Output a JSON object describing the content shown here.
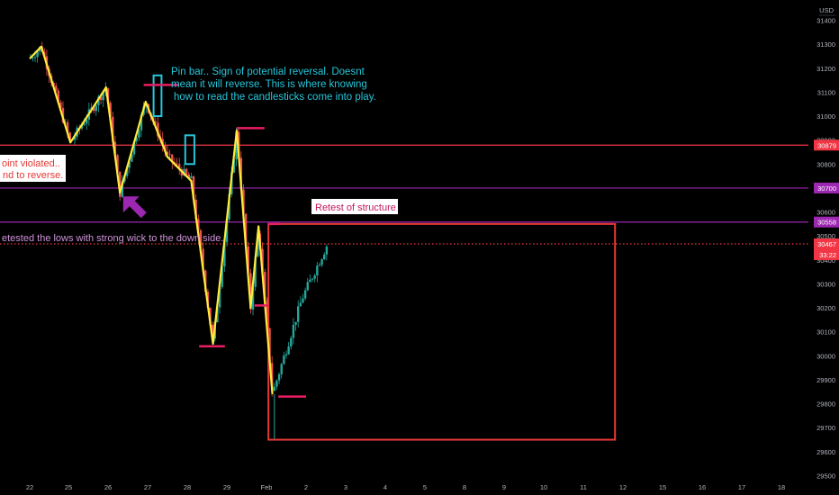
{
  "chart_data": {
    "type": "candlestick",
    "currency": "USD",
    "ylim": [
      29500,
      31500
    ],
    "y_ticks": [
      "31400",
      "31300",
      "31200",
      "31100",
      "31000",
      "30900",
      "30800",
      "30700",
      "30600",
      "30500",
      "30400",
      "30300",
      "30200",
      "30100",
      "30000",
      "29900",
      "29800",
      "29700",
      "29600",
      "29500"
    ],
    "x_ticks": [
      "22",
      "25",
      "26",
      "27",
      "28",
      "29",
      "Feb",
      "2",
      "3",
      "4",
      "5",
      "8",
      "9",
      "10",
      "11",
      "12",
      "15",
      "16",
      "17",
      "18"
    ],
    "price_lines": [
      {
        "value": 30879,
        "label": "30879",
        "color": "#f23645"
      },
      {
        "value": 30700,
        "label": "30700",
        "color": "#9c27b0"
      },
      {
        "value": 30558,
        "label": "30558",
        "color": "#9c27b0"
      },
      {
        "value": 30467,
        "label": "30467",
        "color": "#f23645",
        "dashed": true,
        "countdown": "33:22"
      }
    ],
    "zigzag": [
      {
        "day": 0.0,
        "price": 31240
      },
      {
        "day": 0.3,
        "price": 31290
      },
      {
        "day": 1.05,
        "price": 30890
      },
      {
        "day": 1.95,
        "price": 31120
      },
      {
        "day": 2.3,
        "price": 30680
      },
      {
        "day": 2.95,
        "price": 31060
      },
      {
        "day": 3.5,
        "price": 30830
      },
      {
        "day": 4.1,
        "price": 30730
      },
      {
        "day": 4.65,
        "price": 30050
      },
      {
        "day": 5.25,
        "price": 30940
      },
      {
        "day": 5.6,
        "price": 30200
      },
      {
        "day": 5.8,
        "price": 30540
      },
      {
        "day": 6.15,
        "price": 29840
      }
    ],
    "pin_marks": [
      {
        "day0": 2.9,
        "day1": 3.8,
        "price": 31130
      },
      {
        "day0": 4.3,
        "day1": 4.95,
        "price": 30040
      },
      {
        "day0": 5.25,
        "day1": 5.95,
        "price": 30950
      },
      {
        "day0": 5.7,
        "day1": 6.05,
        "price": 30210
      },
      {
        "day0": 6.05,
        "day1": 6.35,
        "price": 30550
      },
      {
        "day0": 6.3,
        "day1": 7.0,
        "price": 29830
      }
    ],
    "boxes": [
      {
        "day0": 3.15,
        "day1": 3.35,
        "top": 31170,
        "bottom": 31000
      },
      {
        "day0": 3.95,
        "day1": 4.18,
        "top": 30920,
        "bottom": 30800
      }
    ],
    "retest_box": {
      "day0": 6.05,
      "day1": 14.8,
      "top": 30550,
      "bottom": 29650
    },
    "arrow": {
      "day": 2.7,
      "price": 30590
    },
    "annotations": {
      "pin_bar": [
        "Pin bar.. Sign of potential reversal. Doesnt",
        "mean it will reverse. This is where knowing",
        "how to read the candlesticks come into play."
      ],
      "violated": [
        "oint violated..",
        "nd to reverse."
      ],
      "retested": "etested the lows with strong wick to the down side.",
      "retest": "Retest of structure"
    },
    "colors": {
      "up": "#26a69a",
      "down": "#ef5350",
      "zigzag": "#ffeb3b",
      "pin": "#e91e63",
      "box": "#26c6da",
      "arrow": "#9c27b0",
      "retest": "#e53935",
      "pin_text": "#26c6da",
      "retest_text": "#c2185b"
    }
  }
}
